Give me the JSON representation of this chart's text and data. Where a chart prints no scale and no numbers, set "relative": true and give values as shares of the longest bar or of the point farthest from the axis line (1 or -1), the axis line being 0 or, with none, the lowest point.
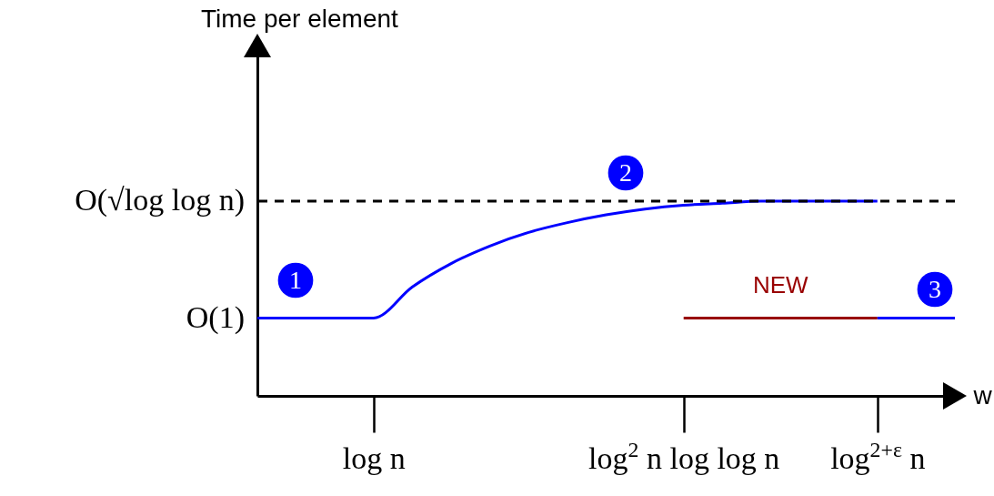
{
  "chart_data": {
    "type": "line",
    "relative": true,
    "xlabel": "w",
    "categories": [
      null,
      null,
      null,
      "log n",
      null,
      null,
      null,
      null,
      null,
      null,
      null,
      "log$^{2}$ n log log n",
      null,
      null,
      null,
      null,
      "log$^{2+ε}$ n",
      null,
      null
    ],
    "series": [
      {
        "color": "#0000ff",
        "values": [
          0.4,
          0.4,
          0.4,
          0.4,
          0.56,
          0.68,
          0.77,
          0.84,
          0.89,
          0.93,
          0.96,
          0.98,
          0.99,
          1,
          1,
          1,
          1,
          null,
          null
        ]
      },
      {
        "name": "NEW",
        "color": "#990000",
        "values": [
          null,
          null,
          null,
          null,
          null,
          null,
          null,
          null,
          null,
          null,
          null,
          0.4,
          0.4,
          0.4,
          0.4,
          0.4,
          0.4,
          null,
          null
        ]
      },
      {
        "color": "#0000ff",
        "values": [
          null,
          null,
          null,
          null,
          null,
          null,
          null,
          null,
          null,
          null,
          null,
          null,
          null,
          null,
          null,
          null,
          0.4,
          0.4,
          0.4
        ]
      }
    ],
    "ref_lines": [
      {
        "axis": "y",
        "value": 1,
        "label": "O(√log log n)",
        "line_style": "dashed",
        "color": "#000000"
      }
    ],
    "annotations": [
      "Time per element",
      "O(1)",
      "1",
      "2",
      "3"
    ]
  }
}
